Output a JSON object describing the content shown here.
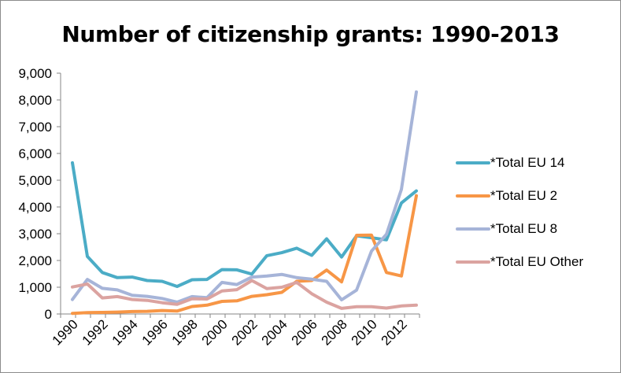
{
  "chart_data": {
    "type": "line",
    "title": "Number of citizenship grants: 1990-2013",
    "xlabel": "",
    "ylabel": "",
    "x": [
      1990,
      1991,
      1992,
      1993,
      1994,
      1995,
      1996,
      1997,
      1998,
      1999,
      2000,
      2001,
      2002,
      2003,
      2004,
      2005,
      2006,
      2007,
      2008,
      2009,
      2010,
      2011,
      2012,
      2013
    ],
    "x_tick_labels": [
      "1990",
      "1992",
      "1994",
      "1996",
      "1998",
      "2000",
      "2002",
      "2004",
      "2006",
      "2008",
      "2010",
      "2012"
    ],
    "y_tick_labels": [
      "0",
      "1,000",
      "2,000",
      "3,000",
      "4,000",
      "5,000",
      "6,000",
      "7,000",
      "8,000",
      "9,000"
    ],
    "ylim": [
      0,
      9000
    ],
    "grid": false,
    "legend_position": "right",
    "series": [
      {
        "name": "*Total EU 14",
        "color": "#4bacc6",
        "values": [
          5650,
          2150,
          1550,
          1360,
          1380,
          1250,
          1220,
          1030,
          1280,
          1290,
          1660,
          1650,
          1490,
          2180,
          2290,
          2460,
          2190,
          2810,
          2130,
          2920,
          2850,
          2770,
          4150,
          4600
        ]
      },
      {
        "name": "*Total EU 2",
        "color": "#f79646",
        "values": [
          20,
          50,
          60,
          70,
          90,
          100,
          130,
          110,
          280,
          330,
          470,
          490,
          660,
          720,
          810,
          1220,
          1250,
          1640,
          1200,
          2940,
          2950,
          1550,
          1420,
          4420
        ]
      },
      {
        "name": "*Total EU 8",
        "color": "#a6b4d8",
        "values": [
          540,
          1290,
          960,
          900,
          700,
          660,
          580,
          440,
          650,
          610,
          1180,
          1100,
          1380,
          1420,
          1480,
          1360,
          1300,
          1220,
          530,
          890,
          2350,
          2980,
          4660,
          8300
        ]
      },
      {
        "name": "*Total EU Other",
        "color": "#dba3a0",
        "values": [
          1010,
          1120,
          600,
          650,
          540,
          510,
          420,
          360,
          570,
          560,
          860,
          910,
          1250,
          950,
          1000,
          1180,
          760,
          440,
          210,
          270,
          270,
          220,
          300,
          330
        ]
      }
    ]
  }
}
